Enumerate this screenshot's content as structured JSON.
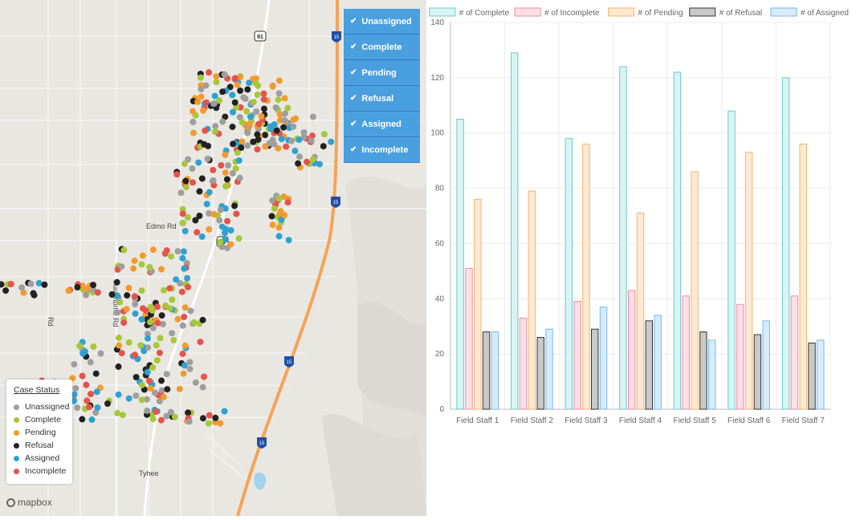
{
  "map": {
    "filters": [
      {
        "label": "Unassigned",
        "checked": true
      },
      {
        "label": "Complete",
        "checked": true
      },
      {
        "label": "Pending",
        "checked": true
      },
      {
        "label": "Refusal",
        "checked": true
      },
      {
        "label": "Assigned",
        "checked": true
      },
      {
        "label": "Incomplete",
        "checked": true
      }
    ],
    "legend": {
      "title": "Case Status",
      "items": [
        {
          "label": "Unassigned",
          "color": "#9e9e9e"
        },
        {
          "label": "Complete",
          "color": "#a5c73a"
        },
        {
          "label": "Pending",
          "color": "#f39a2e"
        },
        {
          "label": "Refusal",
          "color": "#222222"
        },
        {
          "label": "Assigned",
          "color": "#2ea1d1"
        },
        {
          "label": "Incomplete",
          "color": "#e5534b"
        }
      ]
    },
    "road_labels": {
      "edmo": "Edmo Rd",
      "hawthorne": "Hawthorne Rd",
      "left_rd": "Rd",
      "town": "Tyhee",
      "us91": "91",
      "i15": "15"
    },
    "attribution": "mapbox"
  },
  "chart_data": {
    "type": "bar",
    "categories": [
      "Field Staff 1",
      "Field Staff 2",
      "Field Staff 3",
      "Field Staff 4",
      "Field Staff 5",
      "Field Staff 6",
      "Field Staff 7"
    ],
    "series": [
      {
        "name": "# of Complete",
        "fill": "#d9f4f4",
        "stroke": "#6cc9c9",
        "values": [
          105,
          129,
          98,
          124,
          122,
          108,
          120
        ]
      },
      {
        "name": "# of Incomplete",
        "fill": "#fde0e6",
        "stroke": "#f28aa0",
        "values": [
          51,
          33,
          39,
          43,
          41,
          38,
          41
        ]
      },
      {
        "name": "# of Pending",
        "fill": "#ffe9d3",
        "stroke": "#f6b26b",
        "values": [
          76,
          79,
          96,
          71,
          86,
          93,
          96
        ]
      },
      {
        "name": "# of Refusal",
        "fill": "#c9c9c9",
        "stroke": "#333333",
        "values": [
          28,
          26,
          29,
          32,
          28,
          27,
          24
        ]
      },
      {
        "name": "# of Assigned",
        "fill": "#d7ebfa",
        "stroke": "#74b9ea",
        "values": [
          28,
          29,
          37,
          34,
          25,
          32,
          25
        ]
      }
    ],
    "ylim": [
      0,
      140
    ],
    "yticks": [
      0,
      20,
      40,
      60,
      80,
      100,
      120,
      140
    ],
    "grid": true,
    "legend_position": "top"
  }
}
